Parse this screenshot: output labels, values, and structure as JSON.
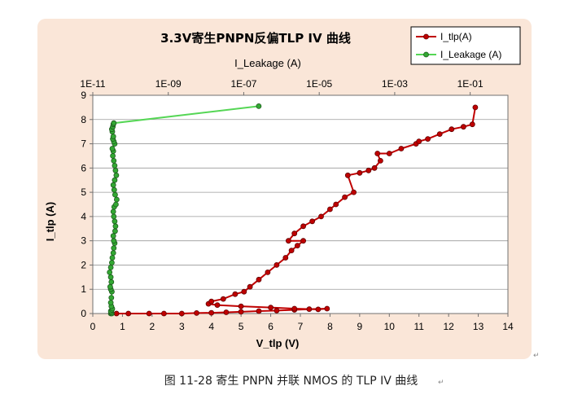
{
  "chart_data": {
    "type": "scatter",
    "title": "3.3V寄生PNPN反偏TLP IV 曲线",
    "xlabel": "V_tlp (V)",
    "ylabel": "I_tlp (A)",
    "x2label": "I_Leakage (A)",
    "xlim": [
      0,
      14
    ],
    "ylim": [
      0,
      9
    ],
    "x2lim": [
      1e-11,
      1
    ],
    "x2scale": "log",
    "x_ticks": [
      "0",
      "1",
      "2",
      "3",
      "4",
      "5",
      "6",
      "7",
      "8",
      "9",
      "10",
      "11",
      "12",
      "13",
      "14"
    ],
    "y_ticks": [
      "0",
      "1",
      "2",
      "3",
      "4",
      "5",
      "6",
      "7",
      "8",
      "9"
    ],
    "x2_ticks": [
      "1E-11",
      "1E-09",
      "1E-07",
      "1E-05",
      "1E-03",
      "1E-01"
    ],
    "grid": true,
    "legend_position": "top-right",
    "series": [
      {
        "name": "I_tlp(A)",
        "axis": "bottom",
        "color": "#c00000",
        "x": [
          0.8,
          1.2,
          1.9,
          2.4,
          3.0,
          3.5,
          4.0,
          4.5,
          5.0,
          5.6,
          6.2,
          6.8,
          7.3,
          7.9,
          7.6,
          6.8,
          6.0,
          5.0,
          4.2,
          3.9,
          4.0,
          4.4,
          4.8,
          5.1,
          5.3,
          5.6,
          5.9,
          6.2,
          6.5,
          6.7,
          6.9,
          7.1,
          6.6,
          6.8,
          7.1,
          7.4,
          7.7,
          8.0,
          8.2,
          8.5,
          8.8,
          8.6,
          9.0,
          9.3,
          9.5,
          9.7,
          9.6,
          10.0,
          10.4,
          10.9,
          11.0,
          11.3,
          11.7,
          12.1,
          12.5,
          12.8,
          12.9
        ],
        "y": [
          0.0,
          0.0,
          0.0,
          0.0,
          0.0,
          0.02,
          0.03,
          0.05,
          0.07,
          0.1,
          0.12,
          0.15,
          0.18,
          0.2,
          0.17,
          0.2,
          0.25,
          0.3,
          0.35,
          0.4,
          0.5,
          0.6,
          0.8,
          0.9,
          1.1,
          1.4,
          1.7,
          2.0,
          2.3,
          2.6,
          2.8,
          3.0,
          3.0,
          3.3,
          3.6,
          3.8,
          4.0,
          4.3,
          4.5,
          4.8,
          5.0,
          5.7,
          5.8,
          5.9,
          6.0,
          6.3,
          6.6,
          6.6,
          6.8,
          7.0,
          7.1,
          7.2,
          7.4,
          7.6,
          7.7,
          7.8,
          8.5
        ]
      },
      {
        "name": "I_Leakage (A)",
        "axis": "top",
        "color": "#55d655",
        "x": [
          3e-11,
          3.2e-11,
          3.1e-11,
          3e-11,
          3.2e-11,
          3.3e-11,
          3.1e-11,
          3e-11,
          3.1e-11,
          3.2e-11,
          3e-11,
          2.9e-11,
          3.1e-11,
          3e-11,
          2.8e-11,
          3e-11,
          3.2e-11,
          3.3e-11,
          3.5e-11,
          3.6e-11,
          3.8e-11,
          3.6e-11,
          3.5e-11,
          3.9e-11,
          4e-11,
          3.8e-11,
          3.6e-11,
          3.5e-11,
          3.7e-11,
          4.1e-11,
          4.3e-11,
          3.9e-11,
          3.7e-11,
          3.5e-11,
          3.8e-11,
          4.2e-11,
          4e-11,
          3.8e-11,
          3.6e-11,
          3.4e-11,
          3.5e-11,
          3.3e-11,
          3.8e-11,
          3.6e-11,
          3.4e-11,
          3.5e-11,
          3.3e-11,
          3.2e-11,
          3.4e-11,
          3.5e-11,
          3.6e-11,
          2.5e-07
        ],
        "y": [
          0.0,
          0.0,
          0.05,
          0.1,
          0.15,
          0.2,
          0.3,
          0.45,
          0.65,
          0.9,
          1.0,
          1.1,
          1.3,
          1.5,
          1.7,
          1.9,
          2.1,
          2.3,
          2.5,
          2.7,
          2.9,
          3.0,
          3.2,
          3.4,
          3.6,
          3.8,
          4.0,
          4.2,
          4.4,
          4.5,
          4.7,
          4.9,
          5.1,
          5.3,
          5.5,
          5.7,
          5.9,
          6.1,
          6.3,
          6.5,
          6.7,
          6.8,
          7.0,
          7.1,
          7.2,
          7.3,
          7.5,
          7.6,
          7.7,
          7.8,
          7.85,
          8.55
        ]
      }
    ]
  },
  "caption": "图 11-28  寄生 PNPN 并联 NMOS 的 TLP IV 曲线",
  "caption_mark": "↵",
  "card_mark": "↵"
}
